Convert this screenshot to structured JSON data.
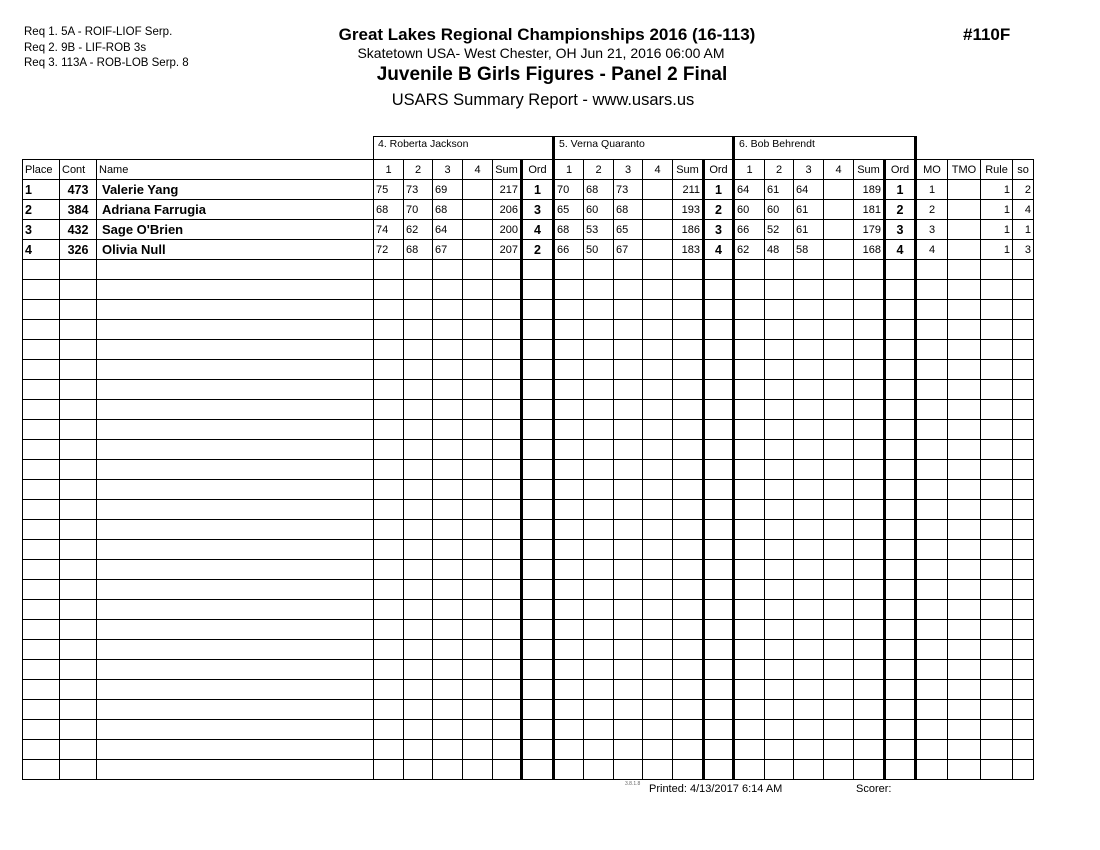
{
  "requirements": [
    "Req  1.  5A - ROIF-LIOF Serp.",
    "Req  2.  9B - LIF-ROB 3s",
    "Req  3.  113A - ROB-LOB Serp. 8"
  ],
  "header": {
    "title": "Great Lakes Regional Championships 2016 (16-113)",
    "venue": "Skatetown USA- West Chester, OH  Jun 21, 2016  06:00 AM",
    "event": "Juvenile B Girls Figures - Panel 2 Final",
    "report": "USARS Summary Report - www.usars.us",
    "event_number": "#110F"
  },
  "judges": [
    "4.  Roberta Jackson",
    "5.  Verna Quaranto",
    "6.  Bob  Behrendt"
  ],
  "columns": {
    "place": "Place",
    "cont": "Cont",
    "name": "Name",
    "scores": [
      "1",
      "2",
      "3",
      "4"
    ],
    "sum": "Sum",
    "ord": "Ord",
    "mo": "MO",
    "tmo": "TMO",
    "rule": "Rule",
    "so": "so"
  },
  "rows": [
    {
      "place": "1",
      "cont": "473",
      "name": "Valerie Yang",
      "judges": [
        {
          "s": [
            "75",
            "73",
            "69",
            ""
          ],
          "sum": "217",
          "ord": "1"
        },
        {
          "s": [
            "70",
            "68",
            "73",
            ""
          ],
          "sum": "211",
          "ord": "1"
        },
        {
          "s": [
            "64",
            "61",
            "64",
            ""
          ],
          "sum": "189",
          "ord": "1"
        }
      ],
      "mo": "1",
      "tmo": "",
      "rule": "1",
      "so": "2"
    },
    {
      "place": "2",
      "cont": "384",
      "name": "Adriana Farrugia",
      "judges": [
        {
          "s": [
            "68",
            "70",
            "68",
            ""
          ],
          "sum": "206",
          "ord": "3"
        },
        {
          "s": [
            "65",
            "60",
            "68",
            ""
          ],
          "sum": "193",
          "ord": "2"
        },
        {
          "s": [
            "60",
            "60",
            "61",
            ""
          ],
          "sum": "181",
          "ord": "2"
        }
      ],
      "mo": "2",
      "tmo": "",
      "rule": "1",
      "so": "4"
    },
    {
      "place": "3",
      "cont": "432",
      "name": "Sage O'Brien",
      "judges": [
        {
          "s": [
            "74",
            "62",
            "64",
            ""
          ],
          "sum": "200",
          "ord": "4"
        },
        {
          "s": [
            "68",
            "53",
            "65",
            ""
          ],
          "sum": "186",
          "ord": "3"
        },
        {
          "s": [
            "66",
            "52",
            "61",
            ""
          ],
          "sum": "179",
          "ord": "3"
        }
      ],
      "mo": "3",
      "tmo": "",
      "rule": "1",
      "so": "1"
    },
    {
      "place": "4",
      "cont": "326",
      "name": "Olivia Null",
      "judges": [
        {
          "s": [
            "72",
            "68",
            "67",
            ""
          ],
          "sum": "207",
          "ord": "2"
        },
        {
          "s": [
            "66",
            "50",
            "67",
            ""
          ],
          "sum": "183",
          "ord": "4"
        },
        {
          "s": [
            "62",
            "48",
            "58",
            ""
          ],
          "sum": "168",
          "ord": "4"
        }
      ],
      "mo": "4",
      "tmo": "",
      "rule": "1",
      "so": "3"
    }
  ],
  "footer": {
    "version": "3.8.1.8",
    "printed": "Printed:  4/13/2017  6:14 AM",
    "scorer": "Scorer:"
  }
}
